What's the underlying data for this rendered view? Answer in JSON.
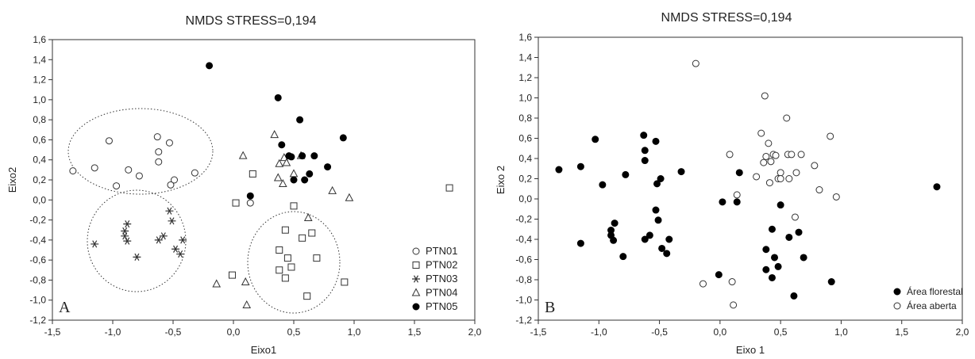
{
  "chart_data": [
    {
      "type": "scatter",
      "panel_label": "A",
      "title": "NMDS STRESS=0,194",
      "xlabel": "Eixo1",
      "ylabel": "Eixo2",
      "xlim": [
        -1.5,
        2.0
      ],
      "ylim": [
        -1.2,
        1.6
      ],
      "x_ticks": [
        "-1,5",
        "-1,0",
        "-0,5",
        "0,0",
        "0,5",
        "1,0",
        "1,5",
        "2,0"
      ],
      "y_ticks": [
        "1,6",
        "1,4",
        "1,2",
        "1,0",
        "0,8",
        "0,6",
        "0,4",
        "0,2",
        "0,0",
        "-0,2",
        "-0,4",
        "-0,6",
        "-0,8",
        "-1,0",
        "-1,2"
      ],
      "grid": false,
      "legend_position": "bottom-right",
      "series": [
        {
          "name": "PTN01",
          "marker": "circle-open",
          "x": [
            -1.33,
            -1.15,
            -1.03,
            -0.97,
            -0.87,
            -0.78,
            -0.63,
            -0.62,
            -0.62,
            -0.53,
            -0.52,
            -0.49,
            -0.32,
            0.14
          ],
          "y": [
            0.29,
            0.32,
            0.59,
            0.14,
            0.3,
            0.24,
            0.63,
            0.48,
            0.38,
            0.57,
            0.15,
            0.2,
            0.27,
            -0.03
          ]
        },
        {
          "name": "PTN02",
          "marker": "square-open",
          "x": [
            0.16,
            0.02,
            0.5,
            0.38,
            0.43,
            0.45,
            0.57,
            0.65,
            0.48,
            0.69,
            0.38,
            0.43,
            0.61,
            0.92,
            -0.01,
            1.79
          ],
          "y": [
            0.26,
            -0.03,
            -0.06,
            -0.5,
            -0.3,
            -0.58,
            -0.38,
            -0.33,
            -0.67,
            -0.58,
            -0.7,
            -0.78,
            -0.96,
            -0.82,
            -0.75,
            0.12
          ]
        },
        {
          "name": "PTN03",
          "marker": "asterisk",
          "x": [
            -1.15,
            -0.9,
            -0.88,
            -0.9,
            -0.88,
            -0.8,
            -0.62,
            -0.58,
            -0.53,
            -0.51,
            -0.48,
            -0.44,
            -0.42
          ],
          "y": [
            -0.44,
            -0.36,
            -0.41,
            -0.31,
            -0.24,
            -0.57,
            -0.4,
            -0.36,
            -0.11,
            -0.21,
            -0.49,
            -0.54,
            -0.4
          ]
        },
        {
          "name": "PTN04",
          "marker": "triangle-open",
          "x": [
            0.08,
            0.34,
            0.37,
            0.38,
            0.42,
            0.41,
            0.44,
            0.5,
            0.56,
            0.62,
            0.82,
            0.96,
            -0.14,
            0.1,
            0.11
          ],
          "y": [
            0.44,
            0.65,
            0.22,
            0.36,
            0.42,
            0.16,
            0.37,
            0.26,
            0.44,
            -0.18,
            0.09,
            0.02,
            -0.84,
            -0.82,
            -1.05
          ]
        },
        {
          "name": "PTN05",
          "marker": "circle-filled",
          "x": [
            -0.2,
            0.37,
            0.4,
            0.46,
            0.48,
            0.5,
            0.55,
            0.57,
            0.59,
            0.63,
            0.67,
            0.78,
            0.91,
            0.14
          ],
          "y": [
            1.34,
            1.02,
            0.55,
            0.44,
            0.43,
            0.2,
            0.8,
            0.44,
            0.2,
            0.26,
            0.44,
            0.33,
            0.62,
            0.04
          ]
        }
      ]
    },
    {
      "type": "scatter",
      "panel_label": "B",
      "title": "NMDS STRESS=0,194",
      "xlabel": "Eixo 1",
      "ylabel": "Eixo 2",
      "xlim": [
        -1.5,
        2.0
      ],
      "ylim": [
        -1.2,
        1.6
      ],
      "x_ticks": [
        "-1,5",
        "-1,0",
        "-0,5",
        "0,0",
        "0,5",
        "1,0",
        "1,5",
        "2,0"
      ],
      "y_ticks": [
        "1,6",
        "1,4",
        "1,2",
        "1,0",
        "0,8",
        "0,6",
        "0,4",
        "0,2",
        "0,0",
        "-0,2",
        "-0,4",
        "-0,6",
        "-0,8",
        "-1,0",
        "-1,2"
      ],
      "grid": false,
      "legend_position": "bottom-right",
      "series": [
        {
          "name": "Área florestal",
          "marker": "circle-filled",
          "x": [
            -1.33,
            -1.15,
            -1.15,
            -1.03,
            -0.97,
            -0.9,
            -0.88,
            -0.9,
            -0.87,
            -0.8,
            -0.78,
            -0.63,
            -0.62,
            -0.62,
            -0.62,
            -0.58,
            -0.53,
            -0.53,
            -0.52,
            -0.51,
            -0.49,
            -0.48,
            -0.44,
            -0.42,
            -0.32,
            0.02,
            0.14,
            0.16,
            0.38,
            0.38,
            0.43,
            0.43,
            0.45,
            0.48,
            0.5,
            0.57,
            0.61,
            0.65,
            0.69,
            0.92,
            1.79,
            -0.01
          ],
          "y": [
            0.29,
            0.32,
            -0.44,
            0.59,
            0.14,
            -0.36,
            -0.41,
            -0.31,
            -0.24,
            -0.57,
            0.24,
            0.63,
            0.48,
            0.38,
            -0.4,
            -0.36,
            0.57,
            -0.11,
            0.15,
            -0.21,
            0.2,
            -0.49,
            -0.54,
            -0.4,
            0.27,
            -0.03,
            -0.03,
            0.26,
            -0.5,
            -0.7,
            -0.3,
            -0.78,
            -0.58,
            -0.67,
            -0.06,
            -0.38,
            -0.96,
            -0.33,
            -0.58,
            -0.82,
            0.12,
            -0.75
          ]
        },
        {
          "name": "Área aberta",
          "marker": "circle-open",
          "x": [
            -0.2,
            -0.14,
            0.08,
            0.1,
            0.11,
            0.14,
            0.3,
            0.34,
            0.36,
            0.37,
            0.38,
            0.4,
            0.41,
            0.42,
            0.44,
            0.46,
            0.48,
            0.5,
            0.5,
            0.55,
            0.56,
            0.57,
            0.59,
            0.62,
            0.63,
            0.67,
            0.78,
            0.82,
            0.91,
            0.96
          ],
          "y": [
            1.34,
            -0.84,
            0.44,
            -0.82,
            -1.05,
            0.04,
            0.22,
            0.65,
            0.36,
            1.02,
            0.42,
            0.55,
            0.16,
            0.37,
            0.44,
            0.43,
            0.2,
            0.26,
            0.2,
            0.8,
            0.44,
            0.2,
            0.44,
            -0.18,
            0.26,
            0.44,
            0.33,
            0.09,
            0.62,
            0.02
          ]
        }
      ]
    }
  ]
}
